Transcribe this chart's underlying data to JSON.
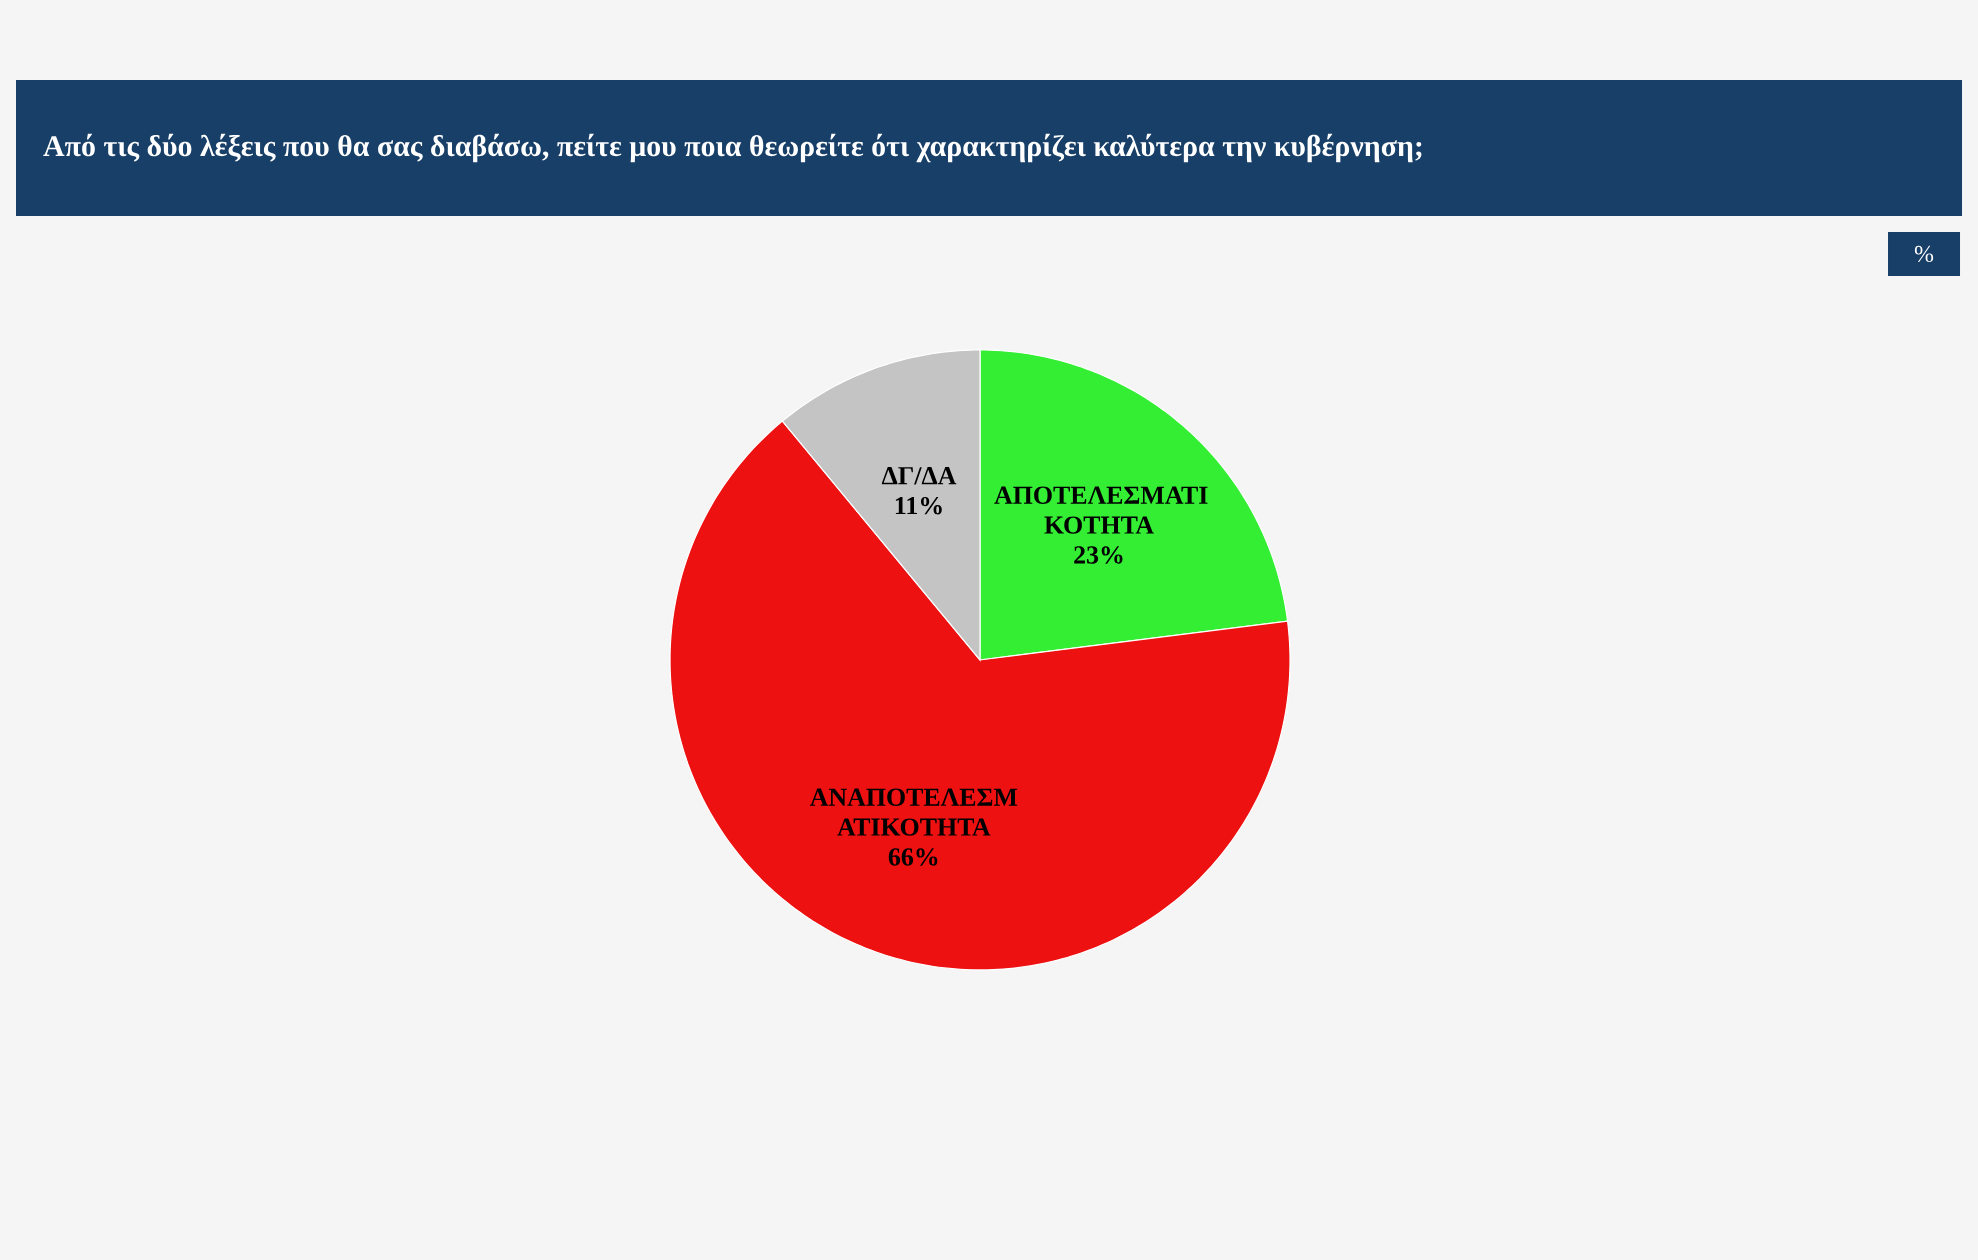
{
  "chart_data": {
    "type": "pie",
    "title": "Από τις δύο λέξεις που θα σας διαβάσω,  πείτε μου ποια θεωρείτε ότι χαρακτηρίζει καλύτερα την κυβέρνηση;",
    "categories": [
      "ΑΠΟΤΕΛΕΣΜΑΤΙ ΚΟΤΗΤΑ",
      "ΑΝΑΠΟΤΕΛΕΣΜ ΑΤΙΚΟΤΗΤΑ",
      "ΔΓ/ΔΑ"
    ],
    "values": [
      23,
      66,
      11
    ],
    "value_labels": [
      "23%",
      "66%",
      "11%"
    ],
    "colors": [
      "#33ee33",
      "#ee1111",
      "#c4c4c4"
    ],
    "annotations": [
      "%"
    ]
  }
}
